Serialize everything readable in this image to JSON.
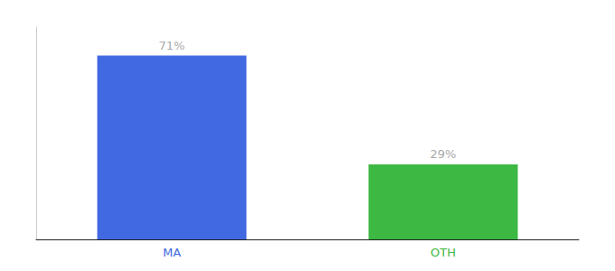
{
  "chart_data": {
    "type": "bar",
    "categories": [
      "MA",
      "OTH"
    ],
    "values": [
      71,
      29
    ],
    "value_labels": [
      "71%",
      "29%"
    ],
    "colors": [
      "#4169E1",
      "#3CB843"
    ],
    "ylim": [
      0,
      82
    ],
    "yticks": [],
    "grid": false,
    "data_labels": true,
    "tick_labels": "x"
  }
}
